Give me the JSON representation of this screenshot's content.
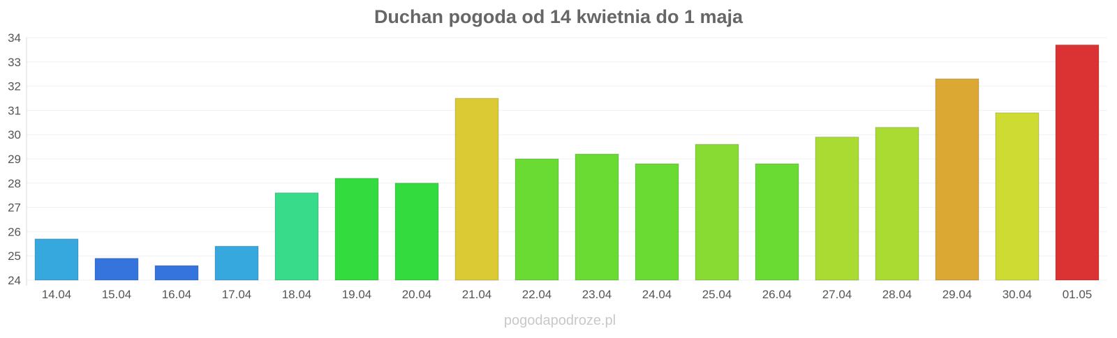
{
  "chart_data": {
    "type": "bar",
    "title": "Duchan pogoda od 14 kwietnia do 1 maja",
    "xlabel": "",
    "ylabel": "",
    "ylim": [
      24,
      34
    ],
    "yticks": [
      24,
      25,
      26,
      27,
      28,
      29,
      30,
      31,
      32,
      33,
      34
    ],
    "grid": true,
    "legend": "none",
    "categories": [
      "14.04",
      "15.04",
      "16.04",
      "17.04",
      "18.04",
      "19.04",
      "20.04",
      "21.04",
      "22.04",
      "23.04",
      "24.04",
      "25.04",
      "26.04",
      "27.04",
      "28.04",
      "29.04",
      "30.04",
      "01.05"
    ],
    "values": [
      25.7,
      24.9,
      24.6,
      25.4,
      27.6,
      28.2,
      28.0,
      31.5,
      29.0,
      29.2,
      28.8,
      29.6,
      28.8,
      29.9,
      30.3,
      32.3,
      30.9,
      33.7
    ],
    "colors": [
      "#37a8dd",
      "#3474dc",
      "#3474dc",
      "#37a8dd",
      "#37db8a",
      "#33db3e",
      "#33db3e",
      "#dbca33",
      "#6adb33",
      "#6adb33",
      "#6adb33",
      "#88db33",
      "#6adb33",
      "#a9db33",
      "#a9db33",
      "#dba833",
      "#cddb33",
      "#db3333"
    ]
  },
  "watermark": "pogodapodroze.pl"
}
